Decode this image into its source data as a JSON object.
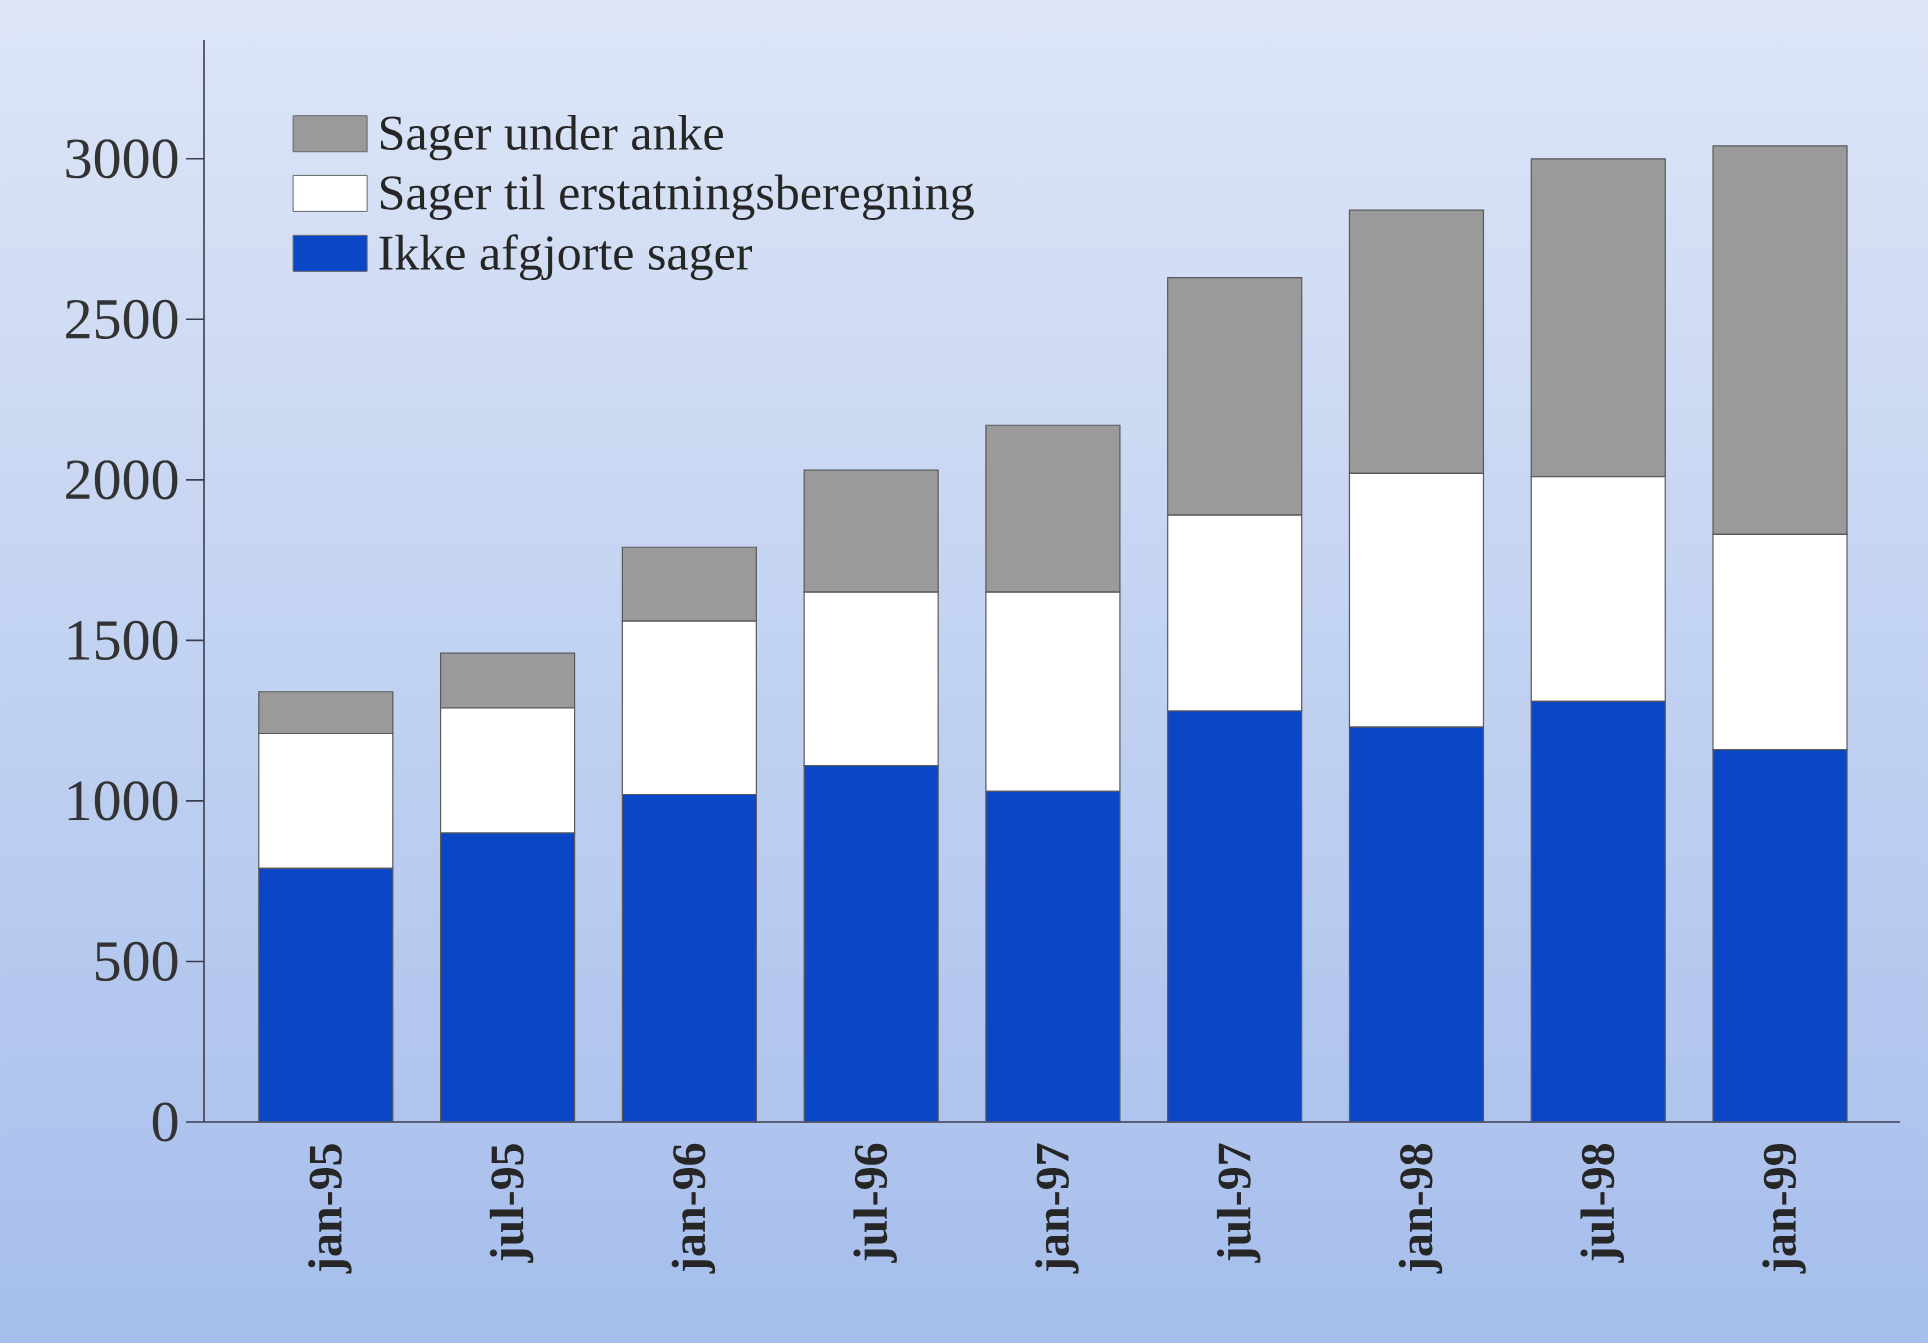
{
  "chart_data": {
    "type": "bar",
    "stacked": true,
    "categories": [
      "jan-95",
      "jul-95",
      "jan-96",
      "jul-96",
      "jan-97",
      "jul-97",
      "jan-98",
      "jul-98",
      "jan-99"
    ],
    "series": [
      {
        "name": "Ikke afgjorte sager",
        "color": "#0a46c6",
        "values": [
          790,
          900,
          1020,
          1110,
          1030,
          1280,
          1230,
          1310,
          1160
        ]
      },
      {
        "name": "Sager til erstatningsberegning",
        "color": "#ffffff",
        "values": [
          420,
          390,
          540,
          540,
          620,
          610,
          790,
          700,
          670
        ]
      },
      {
        "name": "Sager under anke",
        "color": "#9a9a9a",
        "values": [
          130,
          170,
          230,
          380,
          520,
          740,
          820,
          990,
          1210
        ]
      }
    ],
    "ylim": [
      0,
      3370
    ],
    "yticks": [
      0,
      500,
      1000,
      1500,
      2000,
      2500,
      3000
    ],
    "legend": "top left"
  }
}
